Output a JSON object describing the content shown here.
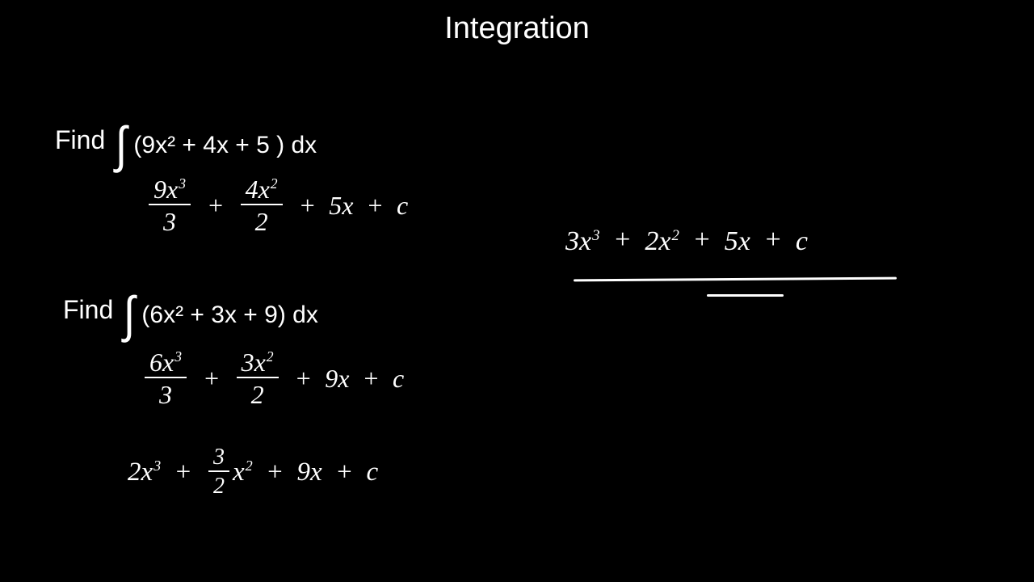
{
  "title": "Integration",
  "background_color": "#000000",
  "text_color": "#ffffff",
  "typed_font": "Segoe UI, Arial, sans-serif",
  "handwritten_font": "Comic Sans MS, cursive",
  "title_fontsize": 38,
  "problem_fontsize": 32,
  "handwritten_fontsize": 32,
  "problem1": {
    "label": "Find",
    "integrand": "(9x² + 4x + 5 ) dx",
    "step1": {
      "term1_num": "9x",
      "term1_num_exp": "3",
      "term1_den": "3",
      "term2_num": "4x",
      "term2_num_exp": "2",
      "term2_den": "2",
      "term3": "5x",
      "term4": "c"
    },
    "answer": {
      "t1_coef": "3x",
      "t1_exp": "3",
      "t2_coef": "2x",
      "t2_exp": "2",
      "t3": "5x",
      "t4": "c"
    }
  },
  "problem2": {
    "label": "Find",
    "integrand": "(6x² + 3x + 9) dx",
    "step1": {
      "term1_num": "6x",
      "term1_num_exp": "3",
      "term1_den": "3",
      "term2_num": "3x",
      "term2_num_exp": "2",
      "term2_den": "2",
      "term3": "9x",
      "term4": "c"
    },
    "answer": {
      "t1_coef": "2x",
      "t1_exp": "3",
      "t2_frac_num": "3",
      "t2_frac_den": "2",
      "t2_var": "x",
      "t2_exp": "2",
      "t3": "9x",
      "t4": "c"
    }
  },
  "plus": "+"
}
